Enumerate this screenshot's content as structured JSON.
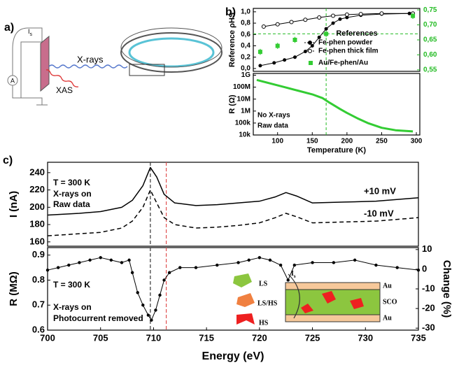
{
  "diagram": {
    "panel_label": "a)",
    "beam": "X-rays",
    "emission": "XAS",
    "current": {
      "main": "I",
      "sub": "s"
    },
    "meter": "A"
  },
  "inset": {
    "states": [
      "LS",
      "LS/HS",
      "HS"
    ],
    "layers": [
      "Au",
      "SCO",
      "Au"
    ],
    "current": {
      "main": "I",
      "sub": "s"
    }
  },
  "chart_data": [
    {
      "type": "line",
      "panel_label": "b)",
      "y_label": "Reference ρHS",
      "legend_title": "References",
      "xlim": [
        65,
        305
      ],
      "ylim": [
        -0.05,
        1.06
      ],
      "yticks": [
        {
          "value": 0,
          "label": "0,0"
        },
        {
          "value": 0.2,
          "label": "0,2"
        },
        {
          "value": 0.4,
          "label": "0,4"
        },
        {
          "value": 0.6,
          "label": "0,6"
        },
        {
          "value": 0.8,
          "label": "0,8"
        },
        {
          "value": 1.0,
          "label": "1,0"
        }
      ],
      "y2lim": [
        0.545,
        0.755
      ],
      "y2ticks": [
        {
          "value": 0.55,
          "label": "0,55"
        },
        {
          "value": 0.6,
          "label": "0,60"
        },
        {
          "value": 0.65,
          "label": "0,65"
        },
        {
          "value": 0.7,
          "label": "0,70"
        },
        {
          "value": 0.75,
          "label": "0,75"
        }
      ],
      "y2_color": "#22bb22",
      "guide_x": 170,
      "guide_y2": 0.67,
      "guide_color": "#22bb22",
      "series": [
        {
          "name": "Fe-phen powder",
          "color": "#000000",
          "marker": "filled",
          "x": [
            75,
            95,
            110,
            125,
            140,
            150,
            160,
            170,
            180,
            190,
            200,
            220,
            250,
            290
          ],
          "values": [
            0.05,
            0.1,
            0.15,
            0.2,
            0.3,
            0.4,
            0.55,
            0.7,
            0.8,
            0.87,
            0.9,
            0.94,
            0.96,
            0.97
          ]
        },
        {
          "name": "Fe-phen thick film",
          "color": "#000000",
          "marker": "open",
          "x": [
            80,
            100,
            120,
            140,
            160,
            180,
            200,
            220,
            250,
            295
          ],
          "values": [
            0.74,
            0.78,
            0.82,
            0.86,
            0.9,
            0.93,
            0.95,
            0.96,
            0.97,
            0.97
          ]
        },
        {
          "name": "Au/Fe-phen/Au",
          "color": "#33cc33",
          "marker": "square",
          "axis": "y2",
          "x": [
            75,
            100,
            125,
            170,
            295
          ],
          "values": [
            0.61,
            0.63,
            0.65,
            0.67,
            0.73
          ],
          "errors": [
            0.01,
            0.01,
            0.01,
            0.01,
            0.01
          ]
        }
      ]
    },
    {
      "type": "line",
      "x_label": "Temperature (K)",
      "y_label": "R (Ω)",
      "log_scale": true,
      "annotations": [
        "No X-rays",
        "Raw data"
      ],
      "xlim": [
        65,
        305
      ],
      "xticks": [
        100,
        150,
        200,
        250,
        300
      ],
      "ylim": [
        10000,
        1400000000
      ],
      "yticks": [
        {
          "value": 10000,
          "label": "10k"
        },
        {
          "value": 100000,
          "label": "100k"
        },
        {
          "value": 1000000,
          "label": "1M"
        },
        {
          "value": 10000000,
          "label": "10M"
        },
        {
          "value": 100000000,
          "label": "100M"
        },
        {
          "value": 1000000000,
          "label": "1G"
        }
      ],
      "guide_x": 170,
      "guide_color": "#22bb22",
      "series": [
        {
          "color": "#33cc33",
          "x": [
            70,
            90,
            110,
            130,
            150,
            165,
            175,
            190,
            200,
            215,
            230,
            250,
            270,
            295
          ],
          "values": [
            400000000,
            200000000,
            100000000,
            50000000,
            25000000,
            12000000,
            5000000,
            1500000,
            700000,
            250000,
            100000,
            40000,
            25000,
            20000
          ]
        }
      ]
    },
    {
      "type": "line",
      "panel_label": "c)",
      "y_label": "I (nA)",
      "annotations": [
        "T = 300 K",
        "X-rays on",
        "Raw data"
      ],
      "xlim": [
        700,
        735
      ],
      "ylim": [
        155,
        252
      ],
      "yticks": [
        160,
        180,
        200,
        220,
        240
      ],
      "vlines": [
        {
          "x": 709.7,
          "color": "#333333"
        },
        {
          "x": 711.2,
          "color": "#e05050"
        }
      ],
      "series": [
        {
          "name": "+10 mV",
          "color": "#000000",
          "dash": false,
          "x": [
            700,
            703,
            705,
            707,
            708,
            709,
            709.7,
            710.3,
            711,
            712,
            714,
            716,
            718,
            720,
            721.5,
            722.5,
            723.5,
            725,
            728,
            731,
            735
          ],
          "values": [
            191,
            193,
            195,
            200,
            208,
            225,
            246,
            235,
            215,
            205,
            202,
            203,
            205,
            207,
            212,
            217,
            213,
            205,
            206,
            207,
            211
          ]
        },
        {
          "name": "-10 mV",
          "color": "#000000",
          "dash": true,
          "x": [
            700,
            705,
            707,
            708,
            709,
            709.7,
            710.3,
            711,
            712,
            714,
            716,
            718,
            720,
            721.5,
            722.5,
            723.5,
            725,
            728,
            731,
            735
          ],
          "values": [
            167,
            171,
            176,
            184,
            200,
            220,
            205,
            188,
            180,
            176,
            177,
            179,
            182,
            188,
            193,
            189,
            182,
            183,
            184,
            188
          ]
        }
      ]
    },
    {
      "type": "line",
      "x_label": "Energy (eV)",
      "y_label": "R (MΩ)",
      "y2_label": "Change (%)",
      "annotations": [
        "T = 300 K",
        "X-rays on",
        "Photocurrent removed"
      ],
      "xlim": [
        700,
        735
      ],
      "xticks": [
        700,
        705,
        710,
        715,
        720,
        725,
        730,
        735
      ],
      "ylim": [
        0.6,
        0.93
      ],
      "yticks": [
        0.6,
        0.7,
        0.8,
        0.9
      ],
      "y2lim": [
        -31,
        11
      ],
      "y2ticks": [
        10,
        0,
        -10,
        -20,
        -30
      ],
      "vlines": [
        {
          "x": 709.7,
          "color": "#333333"
        },
        {
          "x": 711.2,
          "color": "#e05050"
        }
      ],
      "series": [
        {
          "color": "#000000",
          "marker": "dot",
          "x": [
            700,
            701,
            702,
            703,
            704,
            705,
            706,
            707,
            707.7,
            708,
            708.5,
            709,
            709.5,
            709.8,
            710.2,
            710.6,
            711,
            711.5,
            712.5,
            714,
            716,
            718,
            719,
            720,
            721,
            722,
            722.7,
            723.3,
            725,
            727,
            729,
            731,
            733,
            735
          ],
          "values": [
            0.84,
            0.85,
            0.86,
            0.87,
            0.88,
            0.89,
            0.88,
            0.87,
            0.88,
            0.83,
            0.75,
            0.7,
            0.66,
            0.64,
            0.68,
            0.74,
            0.8,
            0.83,
            0.85,
            0.85,
            0.86,
            0.87,
            0.88,
            0.89,
            0.88,
            0.86,
            0.8,
            0.86,
            0.87,
            0.87,
            0.88,
            0.86,
            0.85,
            0.84
          ]
        }
      ]
    }
  ]
}
